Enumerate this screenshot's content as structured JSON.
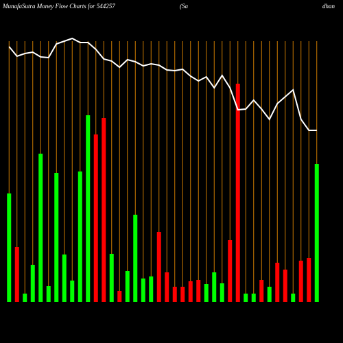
{
  "chart_data": {
    "type": "bar",
    "title": "MunafaSutra  Money Flow  Charts for 544257",
    "title_middle": "(Sa",
    "title_right": "dhan",
    "categories": [
      null,
      null,
      null,
      null,
      null,
      null,
      null,
      null,
      null,
      null,
      null,
      null,
      null,
      null,
      null,
      null,
      null,
      null,
      null,
      null,
      null,
      null,
      null,
      null,
      null,
      null,
      null,
      null,
      null,
      null,
      null,
      null,
      null,
      null,
      null,
      null,
      null,
      null,
      null,
      null
    ],
    "values": [
      158,
      80,
      12,
      54,
      216,
      23,
      188,
      69,
      31,
      190,
      272,
      244,
      268,
      70,
      16,
      45,
      127,
      34,
      37,
      102,
      43,
      22,
      22,
      30,
      32,
      26,
      43,
      27,
      90,
      318,
      12,
      12,
      32,
      22,
      57,
      47,
      12,
      60,
      64,
      201
    ],
    "colors": [
      "#00ff00",
      "#ff0000",
      "#00ff00",
      "#00ff00",
      "#00ff00",
      "#00ff00",
      "#00ff00",
      "#00ff00",
      "#00ff00",
      "#00ff00",
      "#00ff00",
      "#ff0000",
      "#ff0000",
      "#00ff00",
      "#ff0000",
      "#00ff00",
      "#00ff00",
      "#00ff00",
      "#00ff00",
      "#ff0000",
      "#ff0000",
      "#ff0000",
      "#ff0000",
      "#ff0000",
      "#ff0000",
      "#00ff00",
      "#00ff00",
      "#00ff00",
      "#ff0000",
      "#ff0000",
      "#00ff00",
      "#00ff00",
      "#ff0000",
      "#00ff00",
      "#ff0000",
      "#ff0000",
      "#00ff00",
      "#ff0000",
      "#ff0000",
      "#00ff00"
    ],
    "line": {
      "type": "line",
      "color": "#ffffff",
      "values": [
        372,
        358,
        362,
        364,
        357,
        356,
        376,
        380,
        384,
        378,
        378,
        368,
        354,
        351,
        342,
        353,
        350,
        344,
        347,
        345,
        338,
        337,
        339,
        329,
        322,
        328,
        312,
        330,
        312,
        280,
        281,
        294,
        281,
        266,
        289,
        299,
        309,
        266,
        250,
        250
      ]
    },
    "ylim": [
      0,
      380
    ],
    "grid_color": "#cc7a00"
  }
}
